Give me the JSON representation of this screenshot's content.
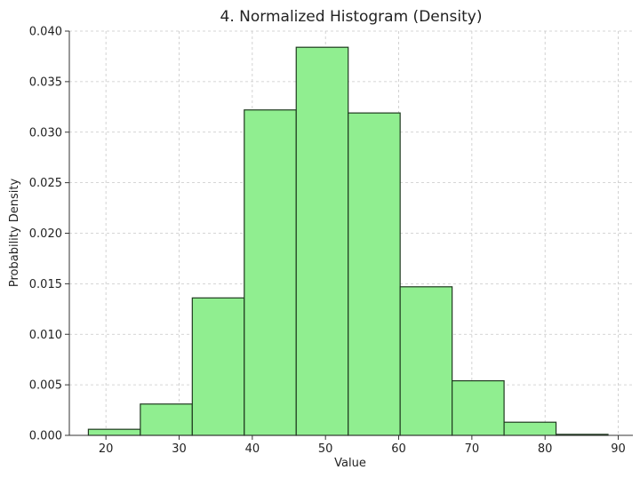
{
  "chart_data": {
    "type": "bar",
    "title": "4. Normalized Histogram (Density)",
    "xlabel": "Value",
    "ylabel": "Probability Density",
    "xlim": [
      15,
      92
    ],
    "ylim": [
      0,
      0.04
    ],
    "xticks": [
      20,
      30,
      40,
      50,
      60,
      70,
      80,
      90
    ],
    "yticks": [
      "0.000",
      "0.005",
      "0.010",
      "0.015",
      "0.020",
      "0.025",
      "0.030",
      "0.035",
      "0.040"
    ],
    "grid": true,
    "bar_color": "#90ee90",
    "edge_color": "#1f3a1f",
    "bin_edges": [
      17.6,
      24.7,
      31.8,
      38.9,
      46.0,
      53.1,
      60.2,
      67.3,
      74.4,
      81.5,
      88.6
    ],
    "values": [
      0.0006,
      0.0031,
      0.0136,
      0.0322,
      0.0384,
      0.0319,
      0.0147,
      0.0054,
      0.0013,
      0.0001
    ]
  }
}
